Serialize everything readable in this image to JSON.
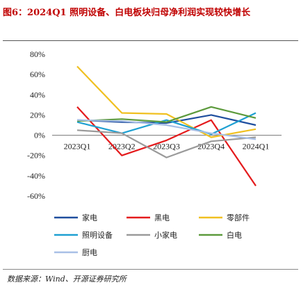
{
  "title": "图6：2024Q1 照明设备、白电板块归母净利润实现较快增长",
  "source": "数据来源：Wind、开源证券研究所",
  "chart_data": {
    "type": "line",
    "categories": [
      "2023Q1",
      "2023Q2",
      "2023Q3",
      "2023Q4",
      "2024Q1"
    ],
    "yunit": "%",
    "ylim": [
      -60,
      80
    ],
    "yticks": [
      -60,
      -40,
      -20,
      0,
      20,
      40,
      60,
      80
    ],
    "grid": false,
    "legend_position": "bottom",
    "series": [
      {
        "name": "家电",
        "color": "#1f4e9e",
        "values": [
          15,
          13,
          12,
          20,
          10
        ]
      },
      {
        "name": "黑电",
        "color": "#e41a1c",
        "values": [
          28,
          -20,
          -5,
          15,
          -50
        ]
      },
      {
        "name": "零部件",
        "color": "#f0c020",
        "values": [
          68,
          22,
          21,
          -2,
          6
        ]
      },
      {
        "name": "照明设备",
        "color": "#1ea0d2",
        "values": [
          13,
          2,
          15,
          1,
          22
        ]
      },
      {
        "name": "小家电",
        "color": "#9a9a9a",
        "values": [
          5,
          2,
          -22,
          -6,
          -2
        ]
      },
      {
        "name": "白电",
        "color": "#5c9a3c",
        "values": [
          14,
          16,
          13,
          28,
          17
        ]
      },
      {
        "name": "厨电",
        "color": "#a8bfe6",
        "values": [
          15,
          14,
          10,
          2,
          -4
        ]
      }
    ]
  }
}
